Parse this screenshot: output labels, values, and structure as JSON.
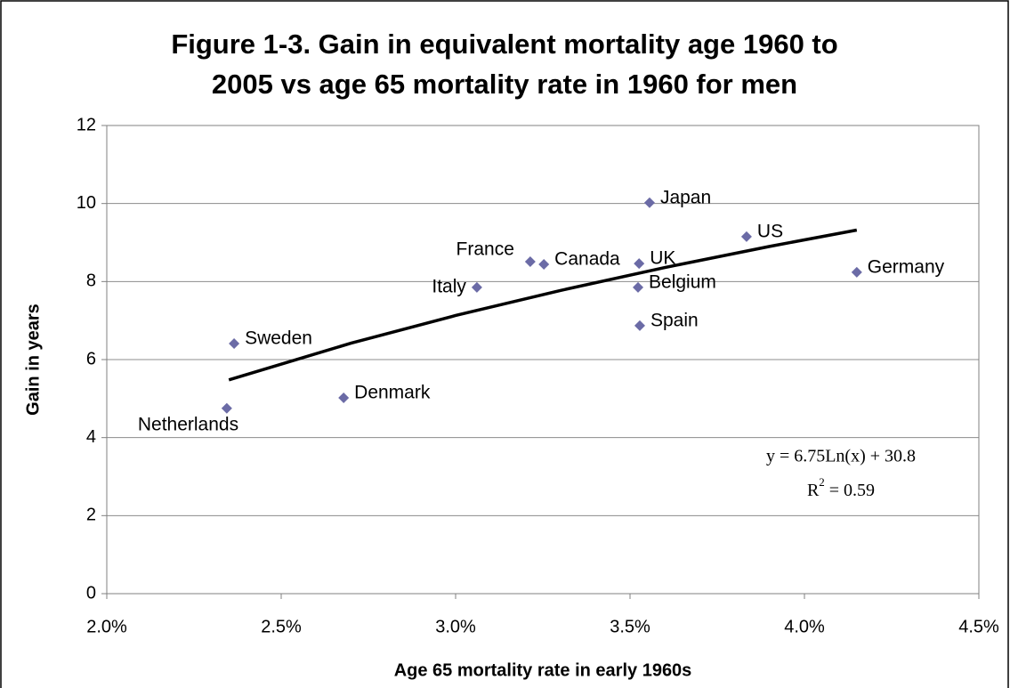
{
  "chart_data": {
    "type": "scatter",
    "title": [
      "Figure 1-3. Gain in equivalent mortality age 1960 to",
      "2005 vs age 65 mortality rate in 1960 for men"
    ],
    "x_label": "Age 65 mortality rate in early 1960s",
    "y_label": "Gain in years",
    "xlim": [
      2.0,
      4.5
    ],
    "xticks": [
      {
        "value": 2.0,
        "label": "2.0%"
      },
      {
        "value": 2.5,
        "label": "2.5%"
      },
      {
        "value": 3.0,
        "label": "3.0%"
      },
      {
        "value": 3.5,
        "label": "3.5%"
      },
      {
        "value": 4.0,
        "label": "4.0%"
      },
      {
        "value": 4.5,
        "label": "4.5%"
      }
    ],
    "ylim": [
      0,
      12
    ],
    "yticks": [
      0,
      2,
      4,
      6,
      8,
      10,
      12
    ],
    "grid": true,
    "color": "#6b6ba6",
    "labels": [
      "Netherlands",
      "Sweden",
      "Denmark",
      "Italy",
      "France",
      "Canada",
      "UK",
      "Belgium",
      "Spain",
      "Japan",
      "US",
      "Germany"
    ],
    "x": [
      2.344,
      2.365,
      2.679,
      3.061,
      3.214,
      3.253,
      3.526,
      3.523,
      3.528,
      3.556,
      3.834,
      4.15
    ],
    "values": [
      4.75,
      6.41,
      5.02,
      7.85,
      8.51,
      8.44,
      8.46,
      7.85,
      6.87,
      10.02,
      9.15,
      8.24
    ],
    "trendline": {
      "color": "#000000",
      "x": [
        2.35,
        2.7,
        3.0,
        3.3,
        3.6,
        3.9,
        4.15
      ],
      "values": [
        5.48,
        6.42,
        7.13,
        7.77,
        8.36,
        8.9,
        9.32
      ],
      "equation": "y = 6.75Ln(x) + 30.8",
      "r_squared": {
        "name": "R",
        "power": "2",
        "value": " = 0.59"
      }
    }
  }
}
